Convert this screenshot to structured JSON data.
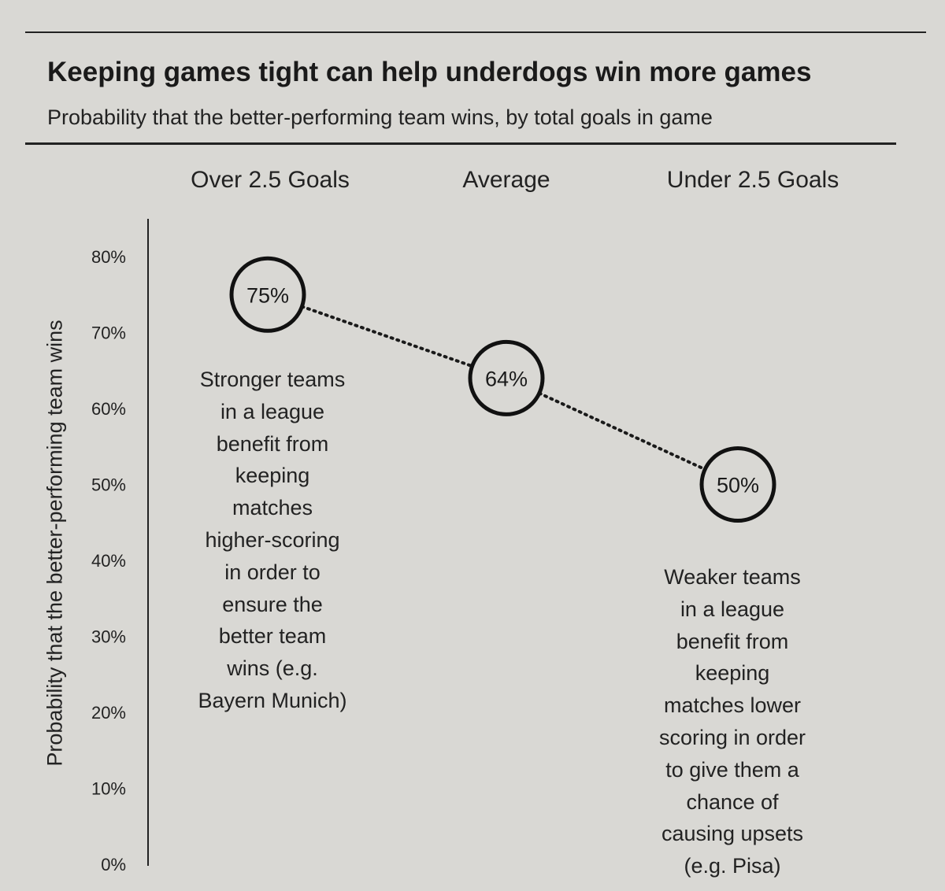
{
  "chart_data": {
    "type": "scatter",
    "title": "Keeping games tight can help underdogs win more games",
    "subtitle": "Probability that the better-performing team wins, by total goals in game",
    "ylabel": "Probability that the better-performing team wins",
    "xlabel": "",
    "ylim": [
      0,
      80
    ],
    "yticks": [
      "0%",
      "10%",
      "20%",
      "30%",
      "40%",
      "50%",
      "60%",
      "70%",
      "80%"
    ],
    "categories": [
      "Over 2.5 Goals",
      "Average",
      "Under 2.5 Goals"
    ],
    "values": [
      75,
      64,
      50
    ],
    "point_labels": [
      "75%",
      "64%",
      "50%"
    ],
    "connector": "dotted",
    "grid": false,
    "annotations": [
      "Stronger teams in a league benefit from keeping matches higher-scoring in order to ensure the better team wins (e.g. Bayern Munich)",
      "Weaker teams in a league benefit from keeping matches lower scoring in order to give them a chance of causing upsets (e.g. Pisa)"
    ]
  },
  "annotation_lines": {
    "left": [
      "Stronger teams",
      "in a league",
      "benefit from",
      "keeping",
      "matches",
      "higher-scoring",
      "in order to",
      "ensure the",
      "better team",
      "wins (e.g.",
      "Bayern Munich)"
    ],
    "right": [
      "Weaker teams",
      "in a league",
      "benefit from",
      "keeping",
      "matches lower",
      "scoring in order",
      "to give them a",
      "chance of",
      "causing upsets",
      "(e.g. Pisa)"
    ]
  },
  "colors": {
    "background": "#d9d8d4",
    "ink": "#1a1a1a"
  }
}
